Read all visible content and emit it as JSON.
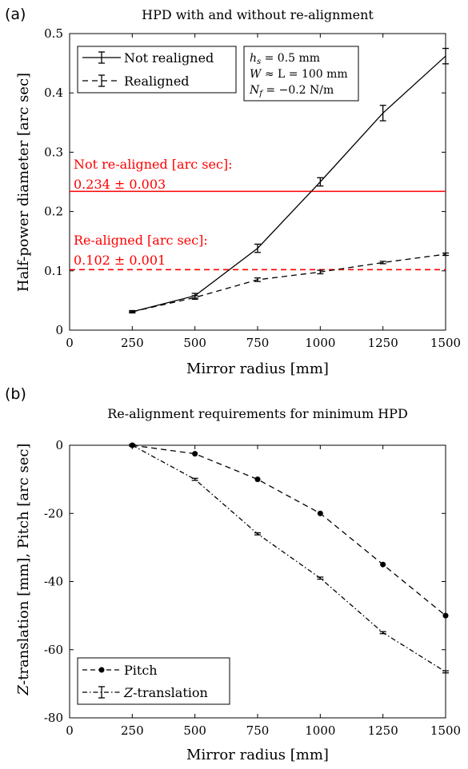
{
  "chart_data": [
    {
      "panel": "(a)",
      "type": "line",
      "title": "HPD with and without re-alignment",
      "xlabel": "Mirror radius [mm]",
      "ylabel": "Half-power diameter [arc sec]",
      "xlim": [
        0,
        1500
      ],
      "ylim": [
        0,
        0.5
      ],
      "xticks": [
        0,
        250,
        500,
        750,
        1000,
        1250,
        1500
      ],
      "xtick_labels": [
        "0",
        "250",
        "500",
        "750",
        "1000",
        "1250",
        "1500"
      ],
      "yticks": [
        0,
        0.1,
        0.2,
        0.3,
        0.4,
        0.5
      ],
      "ytick_labels": [
        "0",
        "0.1",
        "0.2",
        "0.3",
        "0.4",
        "0.5"
      ],
      "grid": false,
      "legend_position": "top-left",
      "x": [
        250,
        500,
        750,
        1000,
        1250,
        1500
      ],
      "series": [
        {
          "name": "Not realigned",
          "values": [
            0.031,
            0.058,
            0.138,
            0.25,
            0.366,
            0.462
          ],
          "errors": [
            0.002,
            0.004,
            0.007,
            0.007,
            0.013,
            0.013
          ],
          "style": "solid",
          "color": "#000000"
        },
        {
          "name": "Realigned",
          "values": [
            0.031,
            0.055,
            0.085,
            0.098,
            0.114,
            0.128
          ],
          "errors": [
            0.001,
            0.003,
            0.003,
            0.003,
            0.002,
            0.002
          ],
          "style": "dashed",
          "color": "#000000"
        }
      ],
      "reference_lines": [
        {
          "y": 0.234,
          "style": "solid",
          "color": "#ff0000",
          "label_line1": "Not re-aligned [arc sec]:",
          "label_line2": "0.234 ± 0.003"
        },
        {
          "y": 0.102,
          "style": "dashed",
          "color": "#ff0000",
          "label_line1": "Re-aligned [arc sec]:",
          "label_line2": "0.102 ± 0.001"
        }
      ],
      "parameters": [
        {
          "symbol": "h",
          "sub": "s",
          "rest": " = 0.5 mm"
        },
        {
          "symbol": "W",
          "sub": "",
          "rest": " ≈ L = 100 mm"
        },
        {
          "symbol": "N",
          "sub": "f",
          "rest": " = −0.2 N/m"
        }
      ]
    },
    {
      "panel": "(b)",
      "type": "line",
      "title": "Re-alignment requirements for minimum HPD",
      "xlabel": "Mirror radius [mm]",
      "ylabel": "Z-translation [mm], Pitch [arc sec]",
      "xlim": [
        0,
        1500
      ],
      "ylim": [
        -80,
        0
      ],
      "xticks": [
        0,
        250,
        500,
        750,
        1000,
        1250,
        1500
      ],
      "xtick_labels": [
        "0",
        "250",
        "500",
        "750",
        "1000",
        "1250",
        "1500"
      ],
      "yticks": [
        -80,
        -60,
        -40,
        -20,
        0
      ],
      "ytick_labels": [
        "-80",
        "-60",
        "-40",
        "-20",
        "0"
      ],
      "grid": false,
      "legend_position": "bottom-left",
      "x": [
        250,
        500,
        750,
        1000,
        1250,
        1500
      ],
      "series": [
        {
          "name": "Pitch",
          "values": [
            0,
            -2.5,
            -10,
            -20,
            -35,
            -50
          ],
          "style": "dashed",
          "marker": "circle",
          "color": "#000000"
        },
        {
          "name": "Z-translation",
          "values": [
            0,
            -10,
            -26,
            -39,
            -55,
            -66.5
          ],
          "errors": [
            0.3,
            0.3,
            0.3,
            0.3,
            0.3,
            0.3
          ],
          "style": "dashdot",
          "color": "#000000"
        }
      ]
    }
  ]
}
